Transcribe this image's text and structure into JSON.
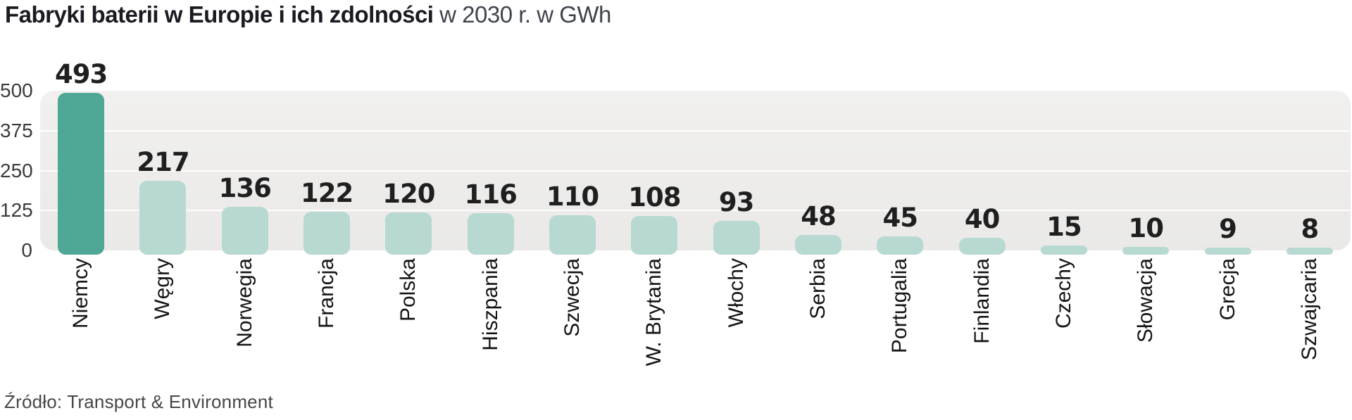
{
  "title": {
    "bold": "Fabryki baterii w Europie i ich zdolności",
    "regular": " w 2030 r. w GWh"
  },
  "source": "Źródło: Transport & Environment",
  "chart_data": {
    "type": "bar",
    "title": "Fabryki baterii w Europie i ich zdolności w 2030 r. w GWh",
    "categories": [
      "Niemcy",
      "Węgry",
      "Norwegia",
      "Francja",
      "Polska",
      "Hiszpania",
      "Szwecja",
      "W. Brytania",
      "Włochy",
      "Serbia",
      "Portugalia",
      "Finlandia",
      "Czechy",
      "Słowacja",
      "Grecja",
      "Szwajcaria"
    ],
    "values": [
      493,
      217,
      136,
      122,
      120,
      116,
      110,
      108,
      93,
      48,
      45,
      40,
      15,
      10,
      9,
      8
    ],
    "unit": "GWh",
    "xlabel": "",
    "ylabel": "",
    "ylim": [
      0,
      500
    ],
    "y_ticks": [
      500,
      375,
      250,
      125,
      0
    ],
    "grid": true,
    "legend_position": "none",
    "colors": {
      "highlight_bar": "#4fa796",
      "bar": "#b7d9d1",
      "plot_background": "#efeeec",
      "gridline": "#ffffff",
      "value_label": "#1f1f1f",
      "axis_label": "#3b3b3b"
    },
    "highlight_index": 0
  }
}
